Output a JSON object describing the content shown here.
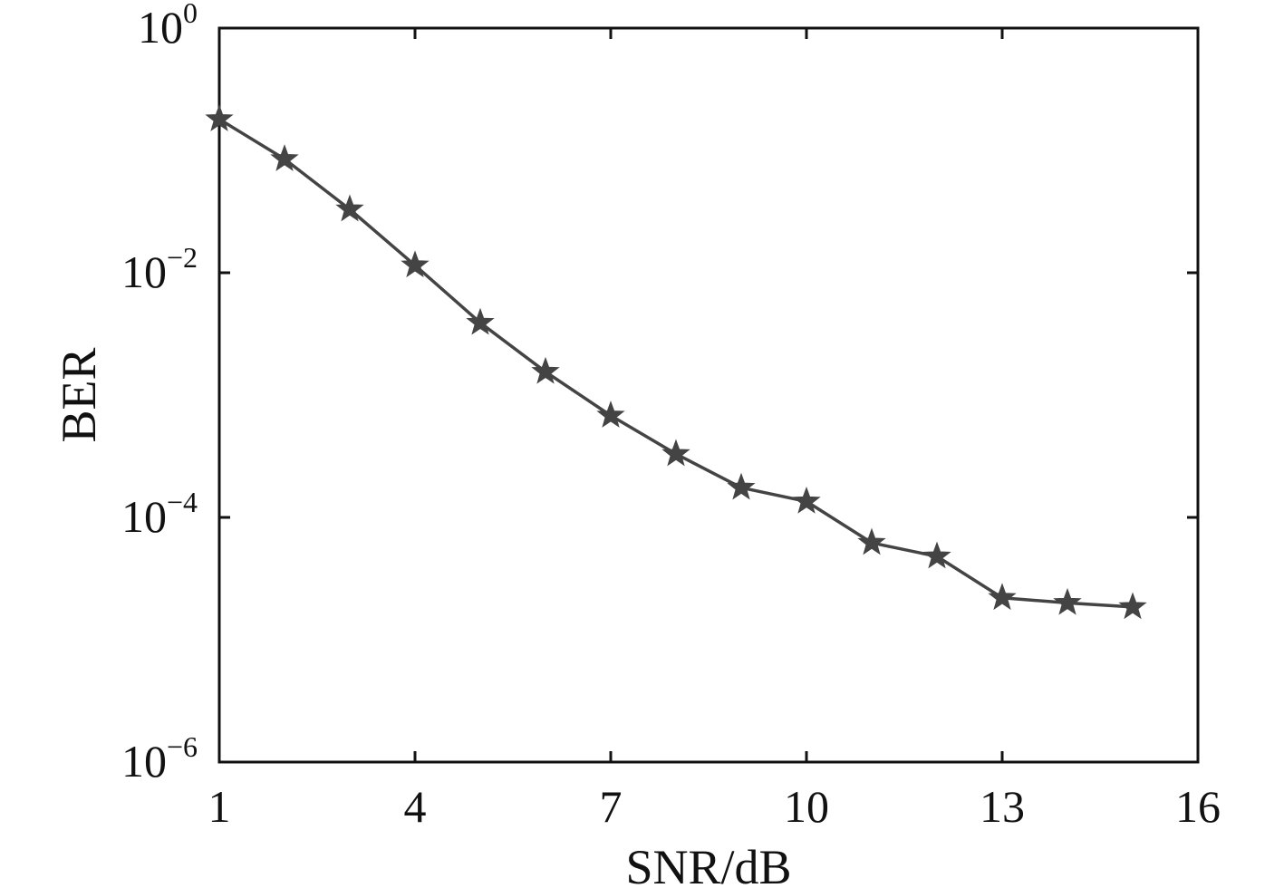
{
  "chart_data": {
    "type": "line",
    "title": "",
    "xlabel": "SNR/dB",
    "ylabel": "BER",
    "xlim": [
      1,
      16
    ],
    "ylim": [
      1e-06,
      1
    ],
    "yscale": "log",
    "grid": false,
    "legend": "none",
    "x_ticks": [
      "1",
      "4",
      "7",
      "10",
      "13",
      "16"
    ],
    "x_tick_values": [
      1,
      4,
      7,
      10,
      13,
      16
    ],
    "y_ticks": [
      {
        "base": "10",
        "exp": "0",
        "value": 1
      },
      {
        "base": "10",
        "exp": "−2",
        "value": 0.01
      },
      {
        "base": "10",
        "exp": "−4",
        "value": 0.0001
      },
      {
        "base": "10",
        "exp": "−6",
        "value": 1e-06
      }
    ],
    "series": [
      {
        "marker": "star",
        "color": "#444444",
        "x": [
          1,
          2,
          3,
          4,
          5,
          6,
          7,
          8,
          9,
          10,
          11,
          12,
          13,
          14,
          15
        ],
        "y": [
          0.18,
          0.085,
          0.033,
          0.0115,
          0.0039,
          0.00155,
          0.00068,
          0.00033,
          0.000175,
          0.000135,
          6.2e-05,
          4.8e-05,
          2.2e-05,
          2e-05,
          1.85e-05
        ]
      }
    ]
  }
}
